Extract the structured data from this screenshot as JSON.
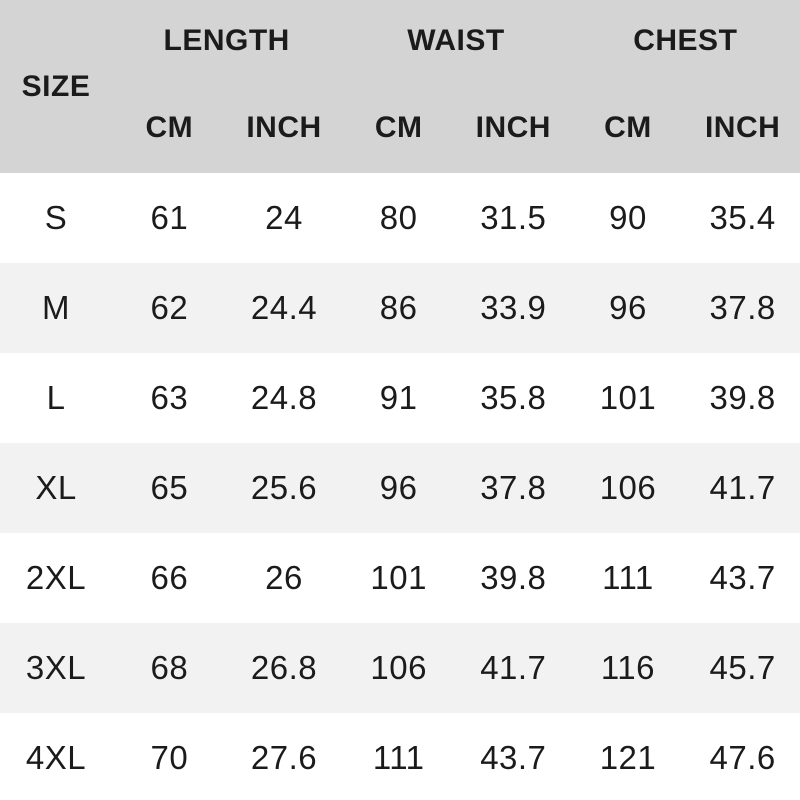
{
  "table": {
    "size_header": "SIZE",
    "group_headers": {
      "length": "LENGTH",
      "waist": "WAIST",
      "chest": "CHEST"
    },
    "unit_headers": {
      "length_cm": "CM",
      "length_inch": "INCH",
      "waist_cm": "CM",
      "waist_inch": "INCH",
      "chest_cm": "CM",
      "chest_inch": "INCH"
    },
    "rows": [
      {
        "size": "S",
        "length_cm": "61",
        "length_inch": "24",
        "waist_cm": "80",
        "waist_inch": "31.5",
        "chest_cm": "90",
        "chest_inch": "35.4"
      },
      {
        "size": "M",
        "length_cm": "62",
        "length_inch": "24.4",
        "waist_cm": "86",
        "waist_inch": "33.9",
        "chest_cm": "96",
        "chest_inch": "37.8"
      },
      {
        "size": "L",
        "length_cm": "63",
        "length_inch": "24.8",
        "waist_cm": "91",
        "waist_inch": "35.8",
        "chest_cm": "101",
        "chest_inch": "39.8"
      },
      {
        "size": "XL",
        "length_cm": "65",
        "length_inch": "25.6",
        "waist_cm": "96",
        "waist_inch": "37.8",
        "chest_cm": "106",
        "chest_inch": "41.7"
      },
      {
        "size": "2XL",
        "length_cm": "66",
        "length_inch": "26",
        "waist_cm": "101",
        "waist_inch": "39.8",
        "chest_cm": "111",
        "chest_inch": "43.7"
      },
      {
        "size": "3XL",
        "length_cm": "68",
        "length_inch": "26.8",
        "waist_cm": "106",
        "waist_inch": "41.7",
        "chest_cm": "116",
        "chest_inch": "45.7"
      },
      {
        "size": "4XL",
        "length_cm": "70",
        "length_inch": "27.6",
        "waist_cm": "111",
        "waist_inch": "43.7",
        "chest_cm": "121",
        "chest_inch": "47.6"
      }
    ]
  },
  "colors": {
    "header_bg": "#d4d4d4",
    "row_bg": "#ffffff",
    "row_alt_bg": "#f2f2f2",
    "text": "#1b1b1b"
  },
  "chart_data": {
    "type": "table",
    "title": "",
    "column_groups": [
      "LENGTH",
      "WAIST",
      "CHEST"
    ],
    "columns": [
      "SIZE",
      "LENGTH CM",
      "LENGTH INCH",
      "WAIST CM",
      "WAIST INCH",
      "CHEST CM",
      "CHEST INCH"
    ],
    "rows": [
      [
        "S",
        61,
        24,
        80,
        31.5,
        90,
        35.4
      ],
      [
        "M",
        62,
        24.4,
        86,
        33.9,
        96,
        37.8
      ],
      [
        "L",
        63,
        24.8,
        91,
        35.8,
        101,
        39.8
      ],
      [
        "XL",
        65,
        25.6,
        96,
        37.8,
        106,
        41.7
      ],
      [
        "2XL",
        66,
        26,
        101,
        39.8,
        111,
        43.7
      ],
      [
        "3XL",
        68,
        26.8,
        106,
        41.7,
        116,
        45.7
      ],
      [
        "4XL",
        70,
        27.6,
        111,
        43.7,
        121,
        47.6
      ]
    ],
    "layout_hints": {
      "striped_rows": true,
      "header_background": "#d4d4d4",
      "borders": "none"
    }
  }
}
